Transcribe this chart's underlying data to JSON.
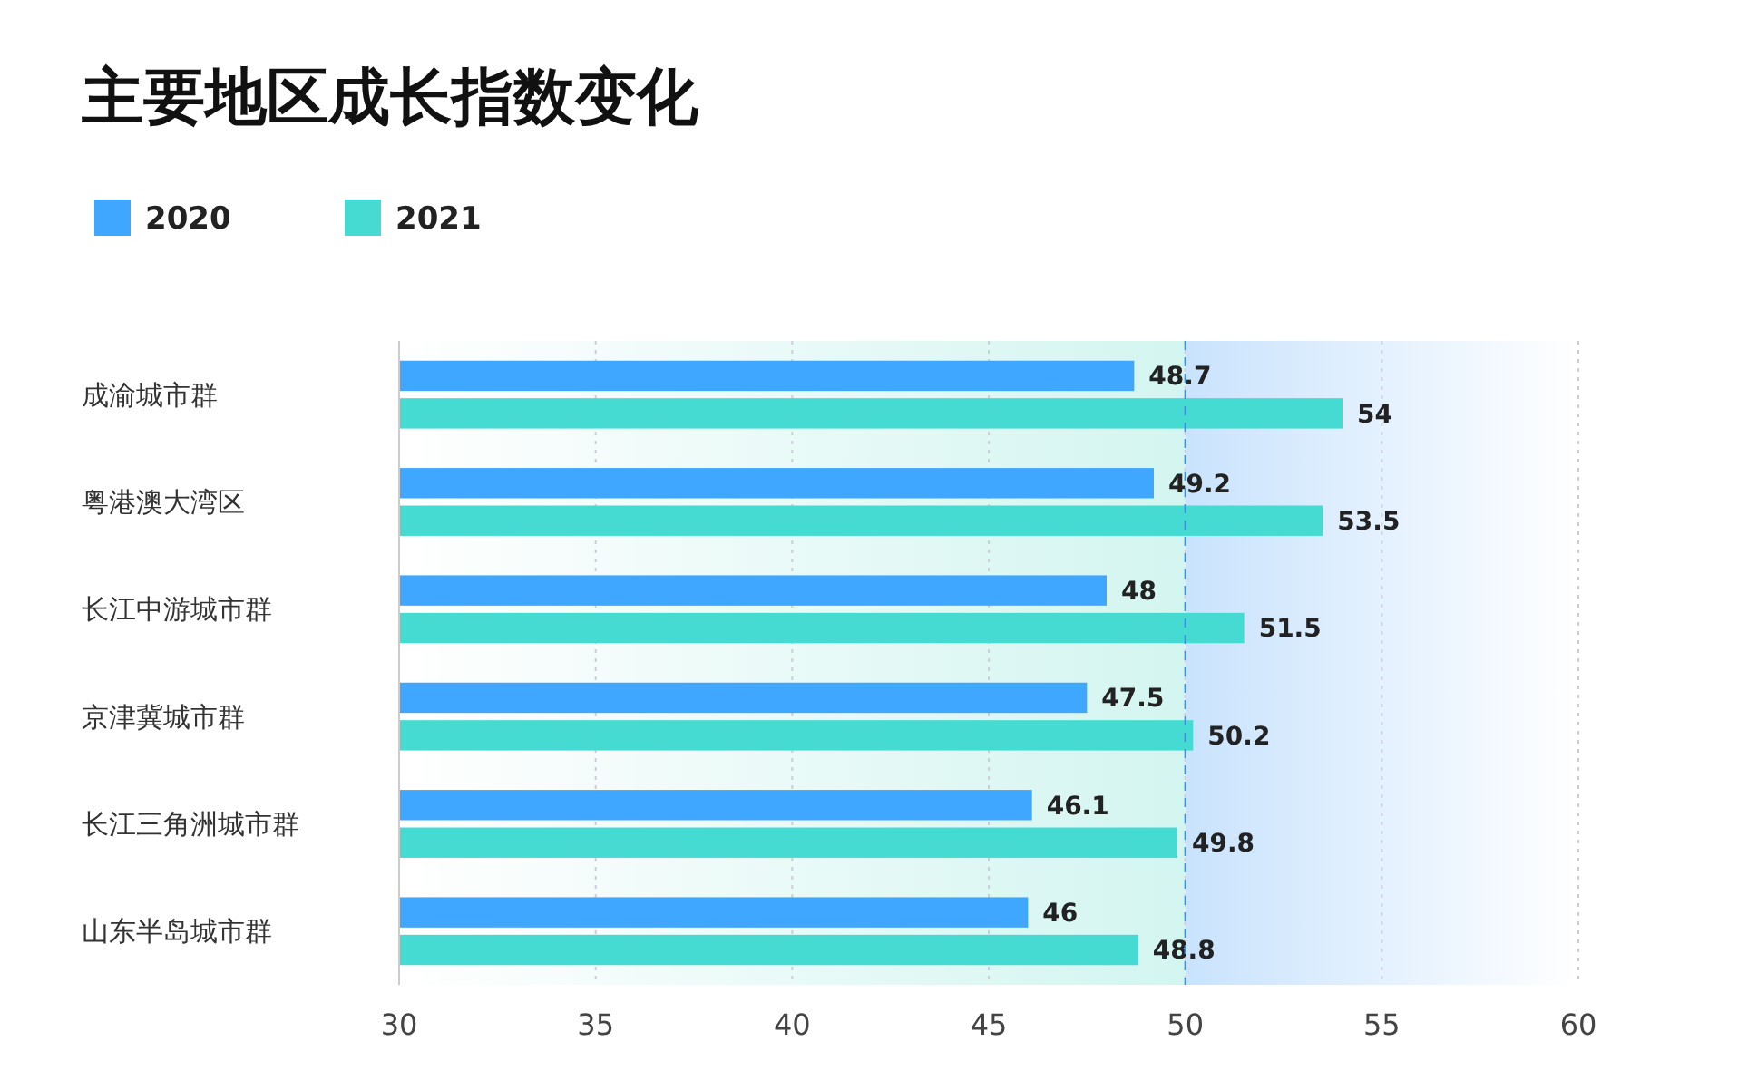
{
  "chart_data": {
    "type": "bar",
    "orientation": "horizontal",
    "title": "主要地区成长指数变化",
    "categories": [
      "成渝城市群",
      "粤港澳大湾区",
      "长江中游城市群",
      "京津冀城市群",
      "长江三角洲城市群",
      "山东半岛城市群"
    ],
    "series": [
      {
        "name": "2020",
        "color": "#3fa7ff",
        "values": [
          48.7,
          49.2,
          48,
          47.5,
          46.1,
          46
        ]
      },
      {
        "name": "2021",
        "color": "#45dbd3",
        "values": [
          54,
          53.5,
          51.5,
          50.2,
          49.8,
          48.8
        ]
      }
    ],
    "xlim": [
      30,
      60
    ],
    "xticks": [
      30,
      35,
      40,
      45,
      50,
      55,
      60
    ],
    "grid": "x",
    "legend": "top left",
    "data_labels": true,
    "ref_lines": [
      {
        "axis": "x",
        "value": 50,
        "color": "#3f8fe0",
        "line_style": "dashed"
      }
    ],
    "bands": [
      {
        "axis": "x",
        "from": 30,
        "to": 50,
        "color": "#d3f5f0"
      },
      {
        "axis": "x",
        "from": 50,
        "to": 60,
        "color": "#c9e3fd"
      }
    ]
  }
}
